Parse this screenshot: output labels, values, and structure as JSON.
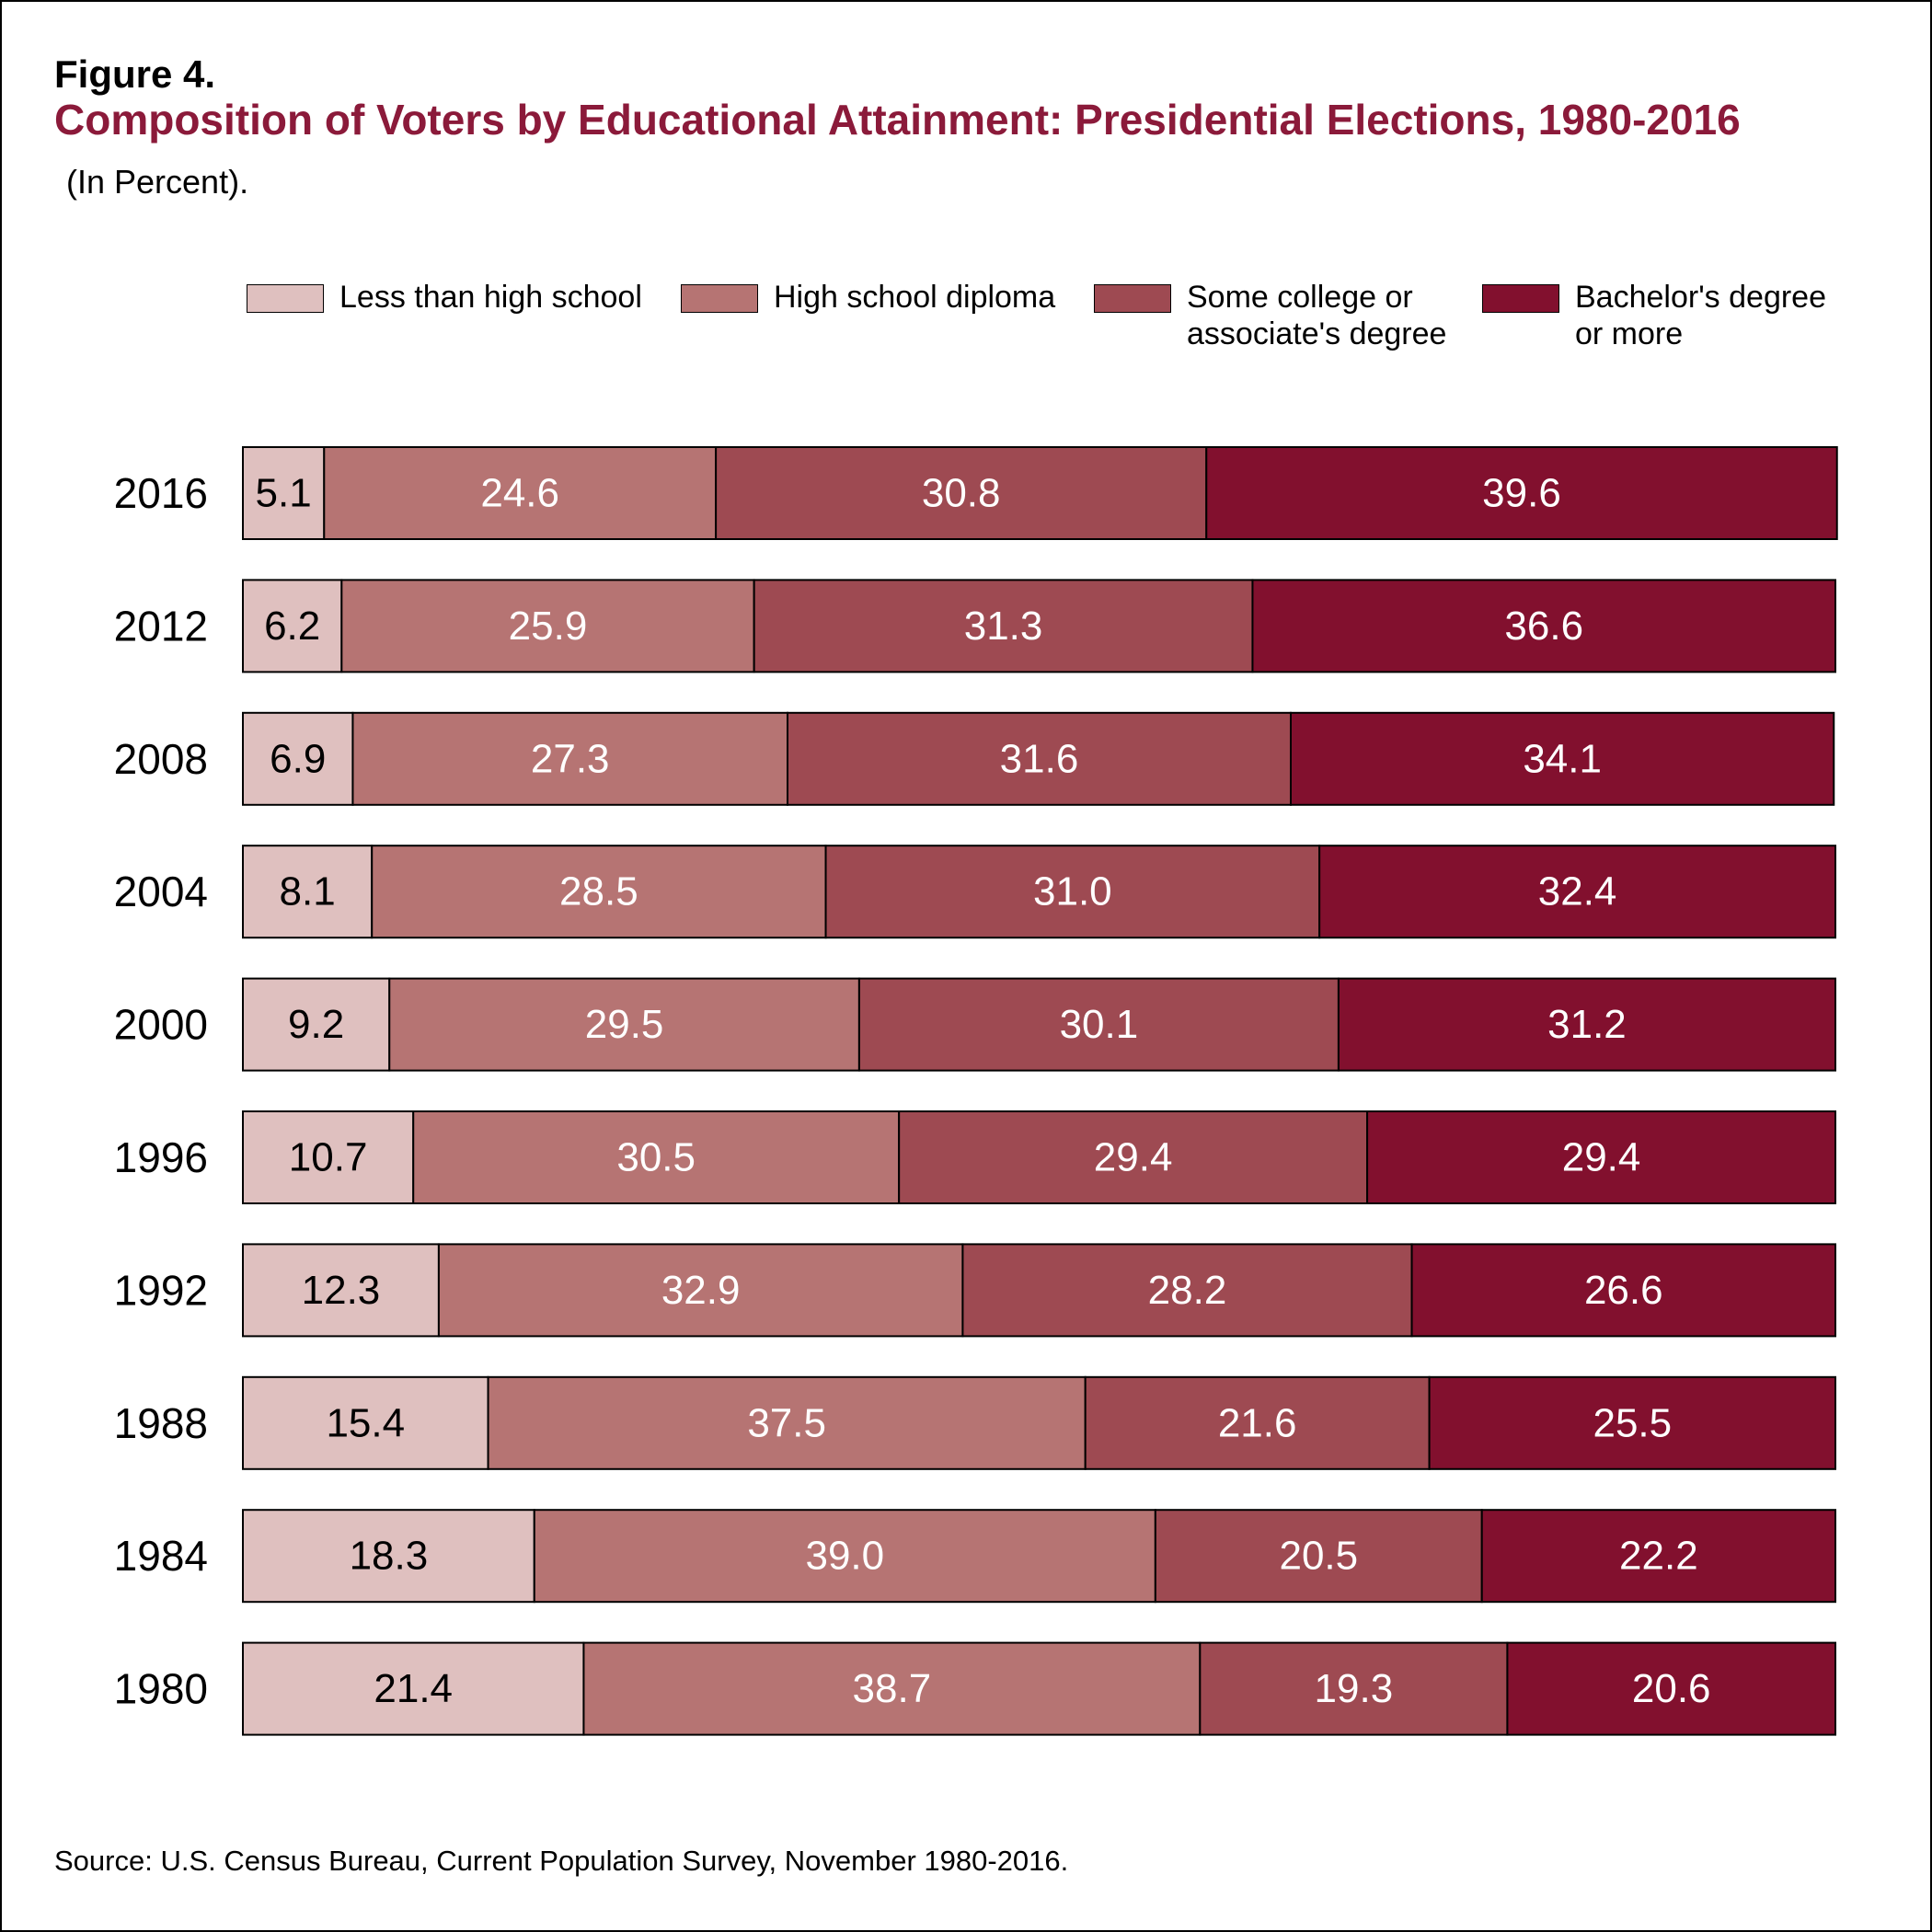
{
  "figure_label": "Figure 4.",
  "title": "Composition of Voters by Educational Attainment: Presidential Elections, 1980-2016",
  "subtitle": "(In Percent).",
  "source": "Source: U.S. Census Bureau, Current Population Survey, November 1980-2016.",
  "colors": {
    "title": "#8b1a3a",
    "less_than_high_school": "#dfc0bf",
    "high_school_diploma": "#b67473",
    "some_college": "#9e4a52",
    "bachelors": "#82102e",
    "border": "#000000"
  },
  "chart_data": {
    "type": "bar",
    "orientation": "horizontal",
    "stacked": true,
    "title": "Composition of Voters by Educational Attainment: Presidential Elections, 1980-2016",
    "subtitle": "(In Percent).",
    "xlabel": "",
    "ylabel": "",
    "xlim": [
      0,
      100
    ],
    "grid": false,
    "legend_position": "top",
    "categories": [
      "2016",
      "2012",
      "2008",
      "2004",
      "2000",
      "1996",
      "1992",
      "1988",
      "1984",
      "1980"
    ],
    "series": [
      {
        "name": "Less than high school",
        "legend_lines": [
          "Less than high school"
        ],
        "color": "#dfc0bf",
        "label_color": "#000000",
        "values": [
          5.1,
          6.2,
          6.9,
          8.1,
          9.2,
          10.7,
          12.3,
          15.4,
          18.3,
          21.4
        ]
      },
      {
        "name": "High school diploma",
        "legend_lines": [
          "High school diploma"
        ],
        "color": "#b67473",
        "label_color": "#ffffff",
        "values": [
          24.6,
          25.9,
          27.3,
          28.5,
          29.5,
          30.5,
          32.9,
          37.5,
          39.0,
          38.7
        ]
      },
      {
        "name": "Some college or associate's degree",
        "legend_lines": [
          "Some college or",
          "associate's degree"
        ],
        "color": "#9e4a52",
        "label_color": "#ffffff",
        "values": [
          30.8,
          31.3,
          31.6,
          31.0,
          30.1,
          29.4,
          28.2,
          21.6,
          20.5,
          19.3
        ]
      },
      {
        "name": "Bachelor's degree or more",
        "legend_lines": [
          "Bachelor's degree",
          "or more"
        ],
        "color": "#82102e",
        "label_color": "#ffffff",
        "values": [
          39.6,
          36.6,
          34.1,
          32.4,
          31.2,
          29.4,
          26.6,
          25.5,
          22.2,
          20.6
        ]
      }
    ],
    "value_labels": [
      [
        "5.1",
        "6.2",
        "6.9",
        "8.1",
        "9.2",
        "10.7",
        "12.3",
        "15.4",
        "18.3",
        "21.4"
      ],
      [
        "24.6",
        "25.9",
        "27.3",
        "28.5",
        "29.5",
        "30.5",
        "32.9",
        "37.5",
        "39.0",
        "38.7"
      ],
      [
        "30.8",
        "31.3",
        "31.6",
        "31.0",
        "30.1",
        "29.4",
        "28.2",
        "21.6",
        "20.5",
        "19.3"
      ],
      [
        "39.6",
        "36.6",
        "34.1",
        "32.4",
        "31.2",
        "29.4",
        "26.6",
        "25.5",
        "22.2",
        "20.6"
      ]
    ]
  }
}
